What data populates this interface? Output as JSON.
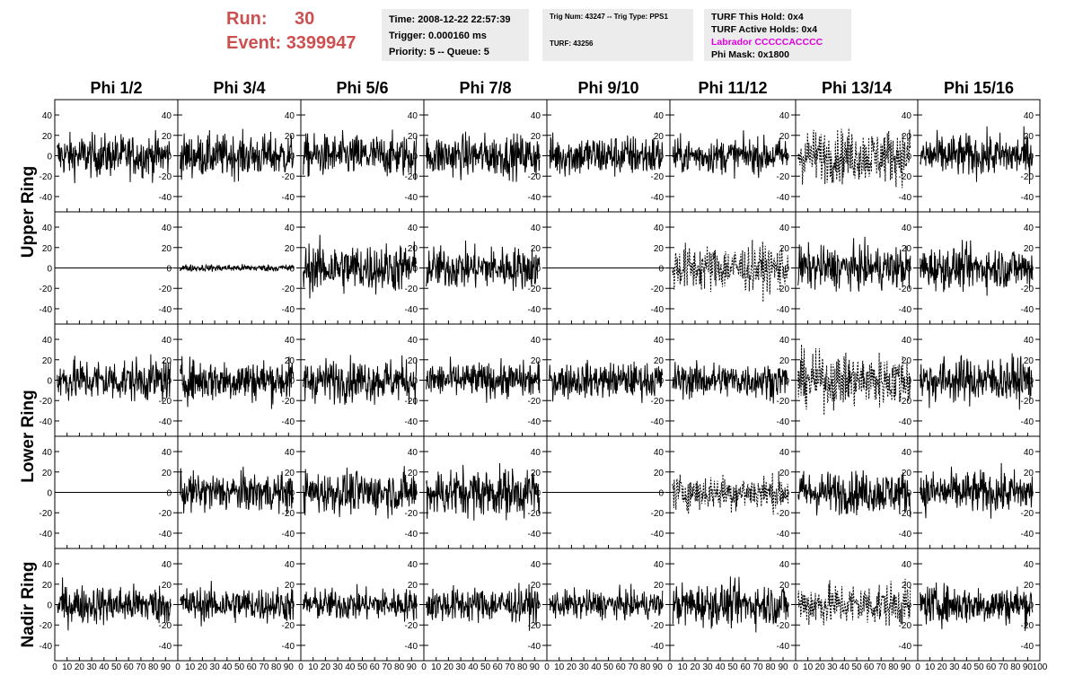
{
  "header": {
    "run_label": "Run:",
    "run_value": "30",
    "event_label": "Event:",
    "event_value": "3399947",
    "time_line": "Time: 2008-12-22 22:57:39",
    "trigger_line": "Trigger: 0.000160 ms",
    "priority_line": "Priority: 5 -- Queue: 5",
    "trig_line": "Trig Num: 43247 -- Trig Type: PPS1",
    "turf_line": "TURF: 43256",
    "turf_hold_line": "TURF This Hold: 0x4",
    "turf_active_line": "TURF Active Holds: 0x4",
    "labrador_line": "Labrador CCCCCACCCC",
    "phi_mask_line": "Phi Mask: 0x1800"
  },
  "colors": {
    "run_text": "#cc5050",
    "labrador_text": "#e000e0",
    "info_bg": "#ececec",
    "trace": "#000000"
  },
  "chart_data": {
    "type": "line",
    "columns": [
      "Phi 1/2",
      "Phi 3/4",
      "Phi 5/6",
      "Phi 7/8",
      "Phi 9/10",
      "Phi 11/12",
      "Phi 13/14",
      "Phi 15/16"
    ],
    "ring_labels": [
      {
        "label": "Upper Ring",
        "rows": [
          0,
          1
        ]
      },
      {
        "label": "Lower Ring",
        "rows": [
          2,
          3
        ]
      },
      {
        "label": "Nadir Ring",
        "rows": [
          4
        ]
      }
    ],
    "xlim": [
      0,
      100
    ],
    "x_ticks": [
      0,
      10,
      20,
      30,
      40,
      50,
      60,
      70,
      80,
      90,
      100
    ],
    "x_tick_labels": [
      "0",
      "10",
      "20",
      "30",
      "40",
      "50",
      "60",
      "70",
      "80",
      "90",
      "100"
    ],
    "ylim": [
      -55,
      55
    ],
    "y_ticks": [
      -40,
      -20,
      0,
      20,
      40
    ],
    "y_tick_labels": [
      "-40",
      "-20",
      "0",
      "20",
      "40"
    ],
    "panel_amplitude": [
      [
        12,
        12,
        12,
        12,
        12,
        10,
        15,
        12
      ],
      [
        0,
        2,
        14,
        12,
        0,
        13,
        12,
        12
      ],
      [
        12,
        12,
        12,
        10,
        10,
        10,
        15,
        13
      ],
      [
        0,
        11,
        12,
        14,
        0,
        10,
        12,
        12
      ],
      [
        11,
        10,
        9,
        10,
        8,
        12,
        12,
        11
      ]
    ],
    "dotted_panels": [
      [
        0,
        6
      ],
      [
        1,
        5
      ],
      [
        2,
        6
      ],
      [
        3,
        5
      ],
      [
        4,
        6
      ]
    ]
  }
}
